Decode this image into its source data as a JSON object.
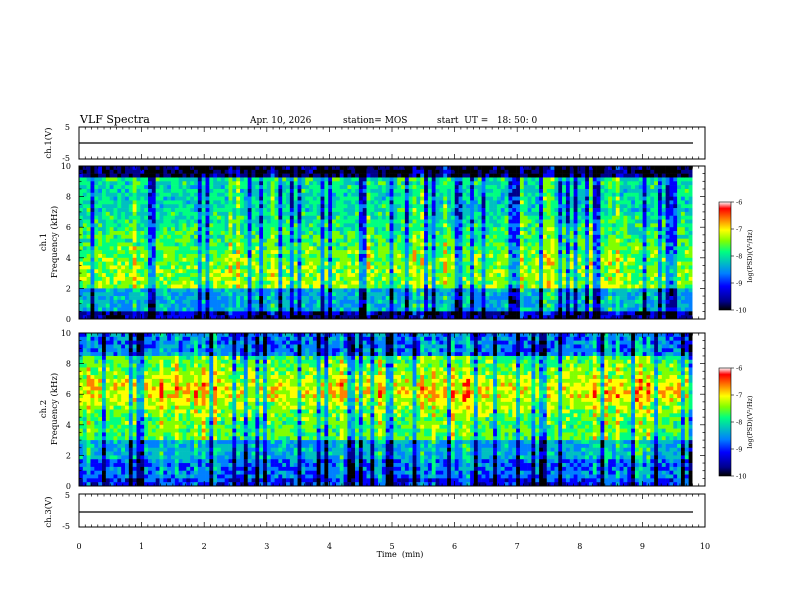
{
  "header": {
    "title": "VLF Spectra",
    "date": "Apr. 10, 2026",
    "station": "station= MOS",
    "start_ut": "start  UT =   18: 50: 0"
  },
  "chart_data": [
    {
      "type": "line",
      "panel": "ch1-voltage",
      "ylabel": "ch.1(V)",
      "ylim": [
        -5,
        5
      ],
      "yticks": [
        "5",
        "-5"
      ],
      "x": [
        0,
        9.8
      ],
      "values": [
        0,
        0
      ],
      "color": "#000000"
    },
    {
      "type": "heatmap",
      "panel": "ch1-spectrogram",
      "ylabel": "ch.1\nFrequency (kHz)",
      "ylim": [
        0,
        10
      ],
      "yticks": [
        "0",
        "2",
        "4",
        "6",
        "8",
        "10"
      ],
      "data_x_extent": [
        0,
        9.8
      ],
      "colorbar": {
        "label": "log(PSD)(V²/Hz)",
        "ticks": [
          "-6",
          "-7",
          "-8",
          "-9",
          "-10"
        ],
        "range": [
          -10,
          -6
        ]
      }
    },
    {
      "type": "heatmap",
      "panel": "ch2-spectrogram",
      "ylabel": "ch.2\nFrequency (kHz)",
      "ylim": [
        0,
        10
      ],
      "yticks": [
        "0",
        "2",
        "4",
        "6",
        "8",
        "10"
      ],
      "data_x_extent": [
        0,
        9.8
      ],
      "colorbar": {
        "label": "log(PSD)(V²/Hz)",
        "ticks": [
          "-6",
          "-7",
          "-8",
          "-9",
          "-10"
        ],
        "range": [
          -10,
          -6
        ]
      }
    },
    {
      "type": "line",
      "panel": "ch3-voltage",
      "ylabel": "ch.3(V)",
      "ylim": [
        -5,
        5
      ],
      "yticks": [
        "5",
        "-5"
      ],
      "x": [
        0,
        9.8
      ],
      "values": [
        0,
        0
      ],
      "color": "#000000"
    }
  ],
  "xaxis": {
    "label": "Time  (min)",
    "xlim": [
      0,
      10
    ],
    "ticks": [
      "0",
      "1",
      "2",
      "3",
      "4",
      "5",
      "6",
      "7",
      "8",
      "9",
      "10"
    ]
  },
  "colormap": [
    "#000000",
    "#00008b",
    "#0000ff",
    "#0080ff",
    "#00c0c0",
    "#00ff80",
    "#80ff00",
    "#ffff00",
    "#ff8000",
    "#ff0000",
    "#ffffff"
  ]
}
